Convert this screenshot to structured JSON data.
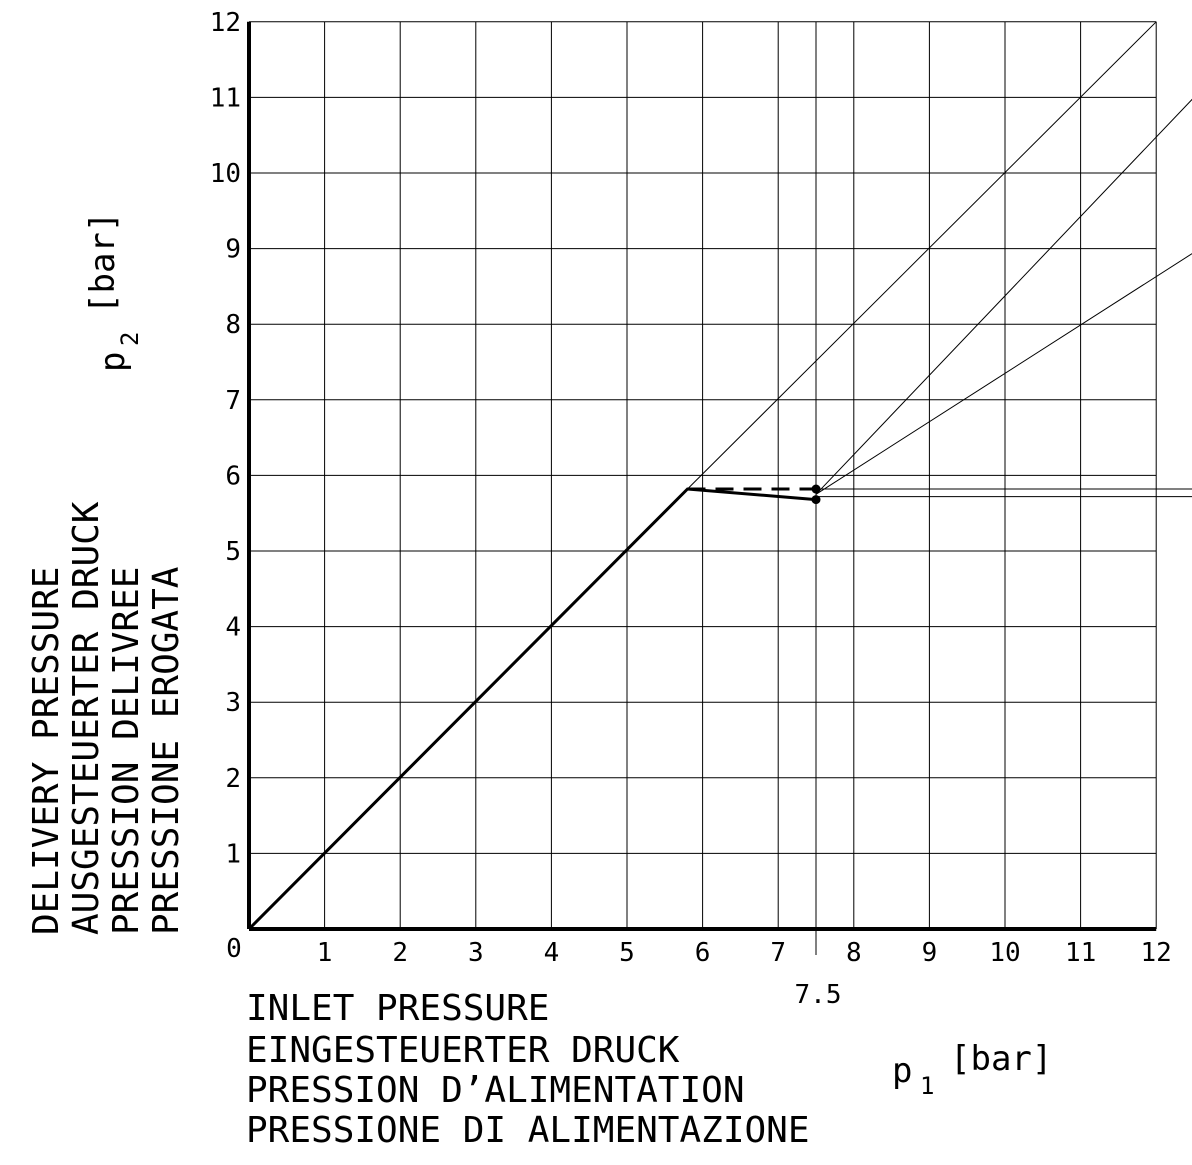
{
  "chart_data": {
    "type": "line",
    "x_axis": {
      "label_lines": [
        "INLET PRESSURE",
        "EINGESTEUERTER DRUCK",
        "PRESSION D’ALIMENTATION",
        "PRESSIONE DI ALIMENTAZIONE"
      ],
      "symbol": "p",
      "subscript": "1",
      "unit": "[bar]",
      "range": [
        0,
        12
      ],
      "ticks": [
        "1",
        "2",
        "3",
        "4",
        "5",
        "6",
        "7",
        "8",
        "9",
        "10",
        "11",
        "12"
      ],
      "extra_tick": "7.5",
      "origin_label": "0"
    },
    "y_axis": {
      "label_lines": [
        "DELIVERY PRESSURE",
        "AUSGESTEUERTER DRUCK",
        "PRESSION DELIVREE",
        "PRESSIONE EROGATA"
      ],
      "symbol": "p",
      "subscript": "2",
      "unit": "[bar]",
      "range": [
        0,
        12
      ],
      "ticks": [
        "1",
        "2",
        "3",
        "4",
        "5",
        "6",
        "7",
        "8",
        "9",
        "10",
        "11",
        "12"
      ]
    },
    "grid": true,
    "series": [
      {
        "style": "thick-solid",
        "points": [
          [
            0,
            0
          ],
          [
            5.8,
            5.82
          ],
          [
            7.5,
            5.68
          ]
        ]
      },
      {
        "style": "thick-dashed",
        "points": [
          [
            5.8,
            5.82
          ],
          [
            7.5,
            5.82
          ]
        ]
      },
      {
        "style": "thin",
        "points": [
          [
            5.8,
            5.82
          ],
          [
            12,
            12
          ]
        ]
      },
      {
        "style": "thin",
        "points": [
          [
            7.5,
            5.75
          ],
          [
            12.5,
            11.0
          ]
        ]
      },
      {
        "style": "thin",
        "points": [
          [
            7.5,
            5.75
          ],
          [
            12.5,
            8.95
          ]
        ]
      },
      {
        "style": "thin",
        "points": [
          [
            7.5,
            5.82
          ],
          [
            12.5,
            5.82
          ]
        ]
      },
      {
        "style": "thin",
        "points": [
          [
            7.5,
            5.72
          ],
          [
            12.5,
            5.72
          ]
        ]
      }
    ],
    "markers": [
      [
        7.5,
        5.82
      ],
      [
        7.5,
        5.68
      ]
    ],
    "reference_x": 7.5
  }
}
